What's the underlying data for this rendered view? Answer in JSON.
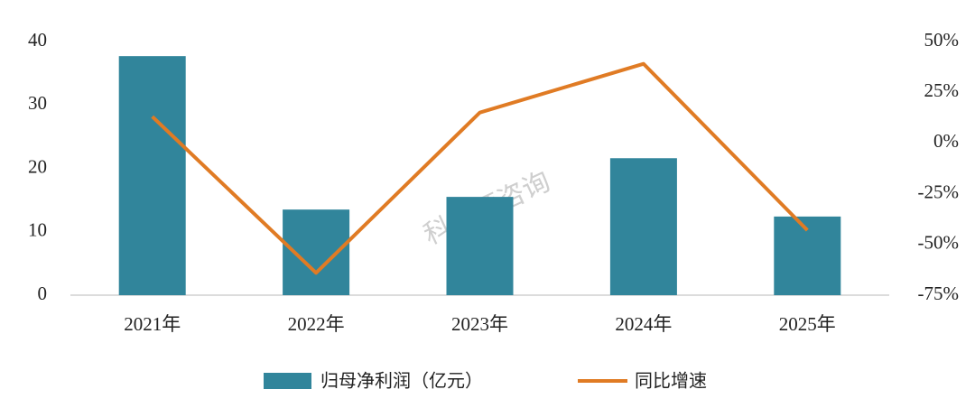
{
  "chart_data": {
    "type": "bar",
    "categories": [
      "2021年",
      "2022年",
      "2023年",
      "2024年",
      "2025年"
    ],
    "series": [
      {
        "name": "归母净利润（亿元）",
        "type": "bar",
        "color": "#31859b",
        "values": [
          37.7,
          13.5,
          15.5,
          21.6,
          12.4
        ]
      },
      {
        "name": "同比增速",
        "type": "line",
        "axis": "y2",
        "color": "#e07b24",
        "values": [
          13,
          -64,
          15,
          39,
          -43
        ]
      }
    ],
    "ylim": [
      0,
      40
    ],
    "yticks": [
      0,
      10,
      20,
      30,
      40
    ],
    "y2lim": [
      -75,
      50
    ],
    "y2ticks": [
      {
        "value": -75,
        "label": "-75%"
      },
      {
        "value": -50,
        "label": "-50%"
      },
      {
        "value": -25,
        "label": "-25%"
      },
      {
        "value": 0,
        "label": "0%"
      },
      {
        "value": 25,
        "label": "25%"
      },
      {
        "value": 50,
        "label": "50%"
      }
    ],
    "legend": "bottom",
    "watermark": "科思顿咨询"
  }
}
